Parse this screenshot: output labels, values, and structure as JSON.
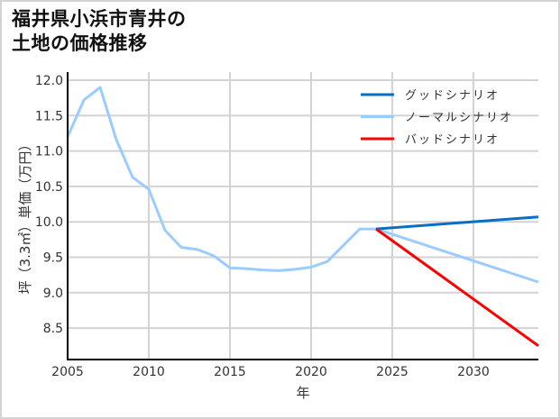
{
  "title_line1": "福井県小浜市青井の",
  "title_line2": "土地の価格推移",
  "chart_data": {
    "type": "line",
    "title": "福井県小浜市青井の土地の価格推移",
    "xlabel": "年",
    "ylabel": "坪（3.3㎡）単価（万円）",
    "xlim": [
      2005,
      2034
    ],
    "ylim": [
      8.15,
      12.05
    ],
    "xticks": [
      2005,
      2010,
      2015,
      2020,
      2025,
      2030
    ],
    "yticks": [
      8.5,
      9.0,
      9.5,
      10.0,
      10.5,
      11.0,
      11.5,
      12.0
    ],
    "ytick_labels": [
      "8.5",
      "9.0",
      "9.5",
      "10.0",
      "10.5",
      "11.0",
      "11.5",
      "12.0"
    ],
    "grid": true,
    "legend_position": "upper right",
    "series": [
      {
        "name": "グッドシナリオ",
        "color": "#0a6fc2",
        "x": [
          2024,
          2034
        ],
        "values": [
          9.9,
          10.07
        ]
      },
      {
        "name": "ノーマルシナリオ",
        "color": "#99ccff",
        "x": [
          2005,
          2006,
          2007,
          2008,
          2009,
          2010,
          2011,
          2012,
          2013,
          2014,
          2015,
          2016,
          2017,
          2018,
          2019,
          2020,
          2021,
          2022,
          2023,
          2024,
          2034
        ],
        "values": [
          11.2,
          11.72,
          11.9,
          11.16,
          10.63,
          10.46,
          9.88,
          9.64,
          9.61,
          9.52,
          9.35,
          9.34,
          9.32,
          9.31,
          9.33,
          9.36,
          9.44,
          9.67,
          9.9,
          9.9,
          9.15
        ]
      },
      {
        "name": "バッドシナリオ",
        "color": "#ff0000",
        "x": [
          2024,
          2034
        ],
        "values": [
          9.9,
          8.25
        ]
      }
    ]
  }
}
